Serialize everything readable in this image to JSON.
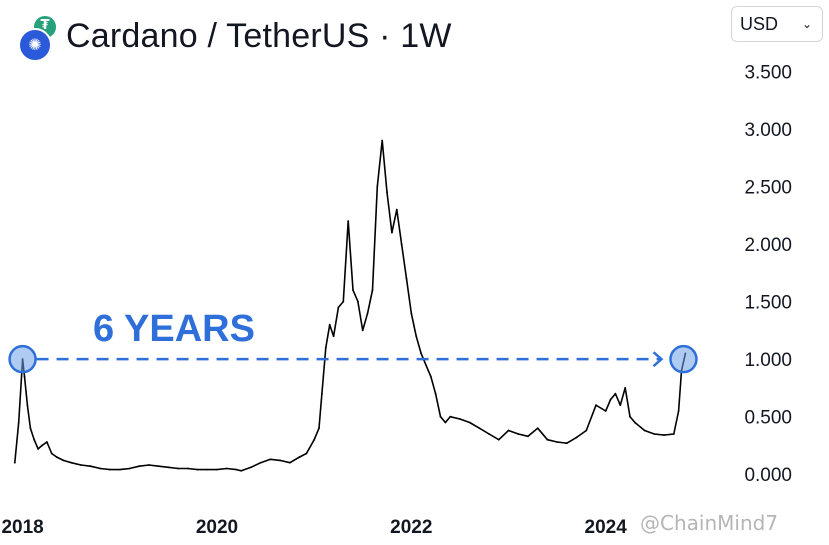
{
  "header": {
    "title": "Cardano / TetherUS · 1W",
    "icons": [
      "tether-icon",
      "cardano-icon"
    ]
  },
  "currency_select": {
    "value": "USD"
  },
  "annotation": {
    "text": "6 YEARS",
    "color": "#2e6fd9",
    "from": {
      "x": 2018.0,
      "y": 1.0
    },
    "to": {
      "x": 2024.8,
      "y": 1.0
    }
  },
  "watermark": "@ChainMind7",
  "chart_data": {
    "type": "line",
    "title": "Cardano / TetherUS · 1W",
    "xlabel": "",
    "ylabel": "",
    "xlim": [
      2017.85,
      2024.97
    ],
    "ylim": [
      -0.05,
      3.6
    ],
    "x_ticks": [
      "2018",
      "2020",
      "2022",
      "2024"
    ],
    "x_tick_values": [
      2018,
      2020,
      2022,
      2024
    ],
    "y_ticks": [
      "0.000",
      "0.500",
      "1.000",
      "1.500",
      "2.000",
      "2.500",
      "3.000",
      "3.500"
    ],
    "y_tick_values": [
      0,
      0.5,
      1.0,
      1.5,
      2.0,
      2.5,
      3.0,
      3.5
    ],
    "grid": false,
    "series": [
      {
        "color": "#000000",
        "x": [
          2017.92,
          2017.96,
          2018.0,
          2018.02,
          2018.05,
          2018.08,
          2018.12,
          2018.16,
          2018.2,
          2018.25,
          2018.3,
          2018.35,
          2018.42,
          2018.5,
          2018.6,
          2018.7,
          2018.8,
          2018.9,
          2019.0,
          2019.1,
          2019.2,
          2019.3,
          2019.4,
          2019.5,
          2019.6,
          2019.7,
          2019.8,
          2019.9,
          2020.0,
          2020.1,
          2020.2,
          2020.25,
          2020.35,
          2020.45,
          2020.55,
          2020.65,
          2020.75,
          2020.85,
          2020.92,
          2021.0,
          2021.05,
          2021.08,
          2021.12,
          2021.16,
          2021.2,
          2021.25,
          2021.3,
          2021.35,
          2021.4,
          2021.45,
          2021.5,
          2021.55,
          2021.6,
          2021.65,
          2021.7,
          2021.75,
          2021.8,
          2021.85,
          2021.9,
          2021.95,
          2022.0,
          2022.05,
          2022.1,
          2022.15,
          2022.2,
          2022.25,
          2022.3,
          2022.35,
          2022.4,
          2022.5,
          2022.6,
          2022.7,
          2022.8,
          2022.9,
          2023.0,
          2023.1,
          2023.2,
          2023.3,
          2023.4,
          2023.5,
          2023.6,
          2023.7,
          2023.8,
          2023.9,
          2024.0,
          2024.05,
          2024.1,
          2024.15,
          2024.2,
          2024.25,
          2024.3,
          2024.4,
          2024.5,
          2024.6,
          2024.7,
          2024.75,
          2024.78,
          2024.82
        ],
        "y": [
          0.1,
          0.45,
          1.0,
          0.85,
          0.6,
          0.4,
          0.3,
          0.22,
          0.25,
          0.28,
          0.18,
          0.15,
          0.12,
          0.1,
          0.08,
          0.07,
          0.05,
          0.04,
          0.04,
          0.05,
          0.07,
          0.08,
          0.07,
          0.06,
          0.05,
          0.05,
          0.04,
          0.04,
          0.04,
          0.05,
          0.04,
          0.03,
          0.06,
          0.1,
          0.13,
          0.12,
          0.1,
          0.15,
          0.18,
          0.3,
          0.4,
          0.7,
          1.1,
          1.3,
          1.2,
          1.45,
          1.5,
          2.2,
          1.6,
          1.5,
          1.25,
          1.4,
          1.6,
          2.5,
          2.9,
          2.45,
          2.1,
          2.3,
          2.0,
          1.7,
          1.4,
          1.2,
          1.05,
          0.95,
          0.85,
          0.7,
          0.5,
          0.45,
          0.5,
          0.48,
          0.45,
          0.4,
          0.35,
          0.3,
          0.38,
          0.35,
          0.33,
          0.4,
          0.3,
          0.28,
          0.27,
          0.32,
          0.38,
          0.6,
          0.55,
          0.65,
          0.7,
          0.6,
          0.75,
          0.5,
          0.45,
          0.38,
          0.35,
          0.34,
          0.35,
          0.55,
          0.9,
          1.05
        ]
      }
    ]
  }
}
